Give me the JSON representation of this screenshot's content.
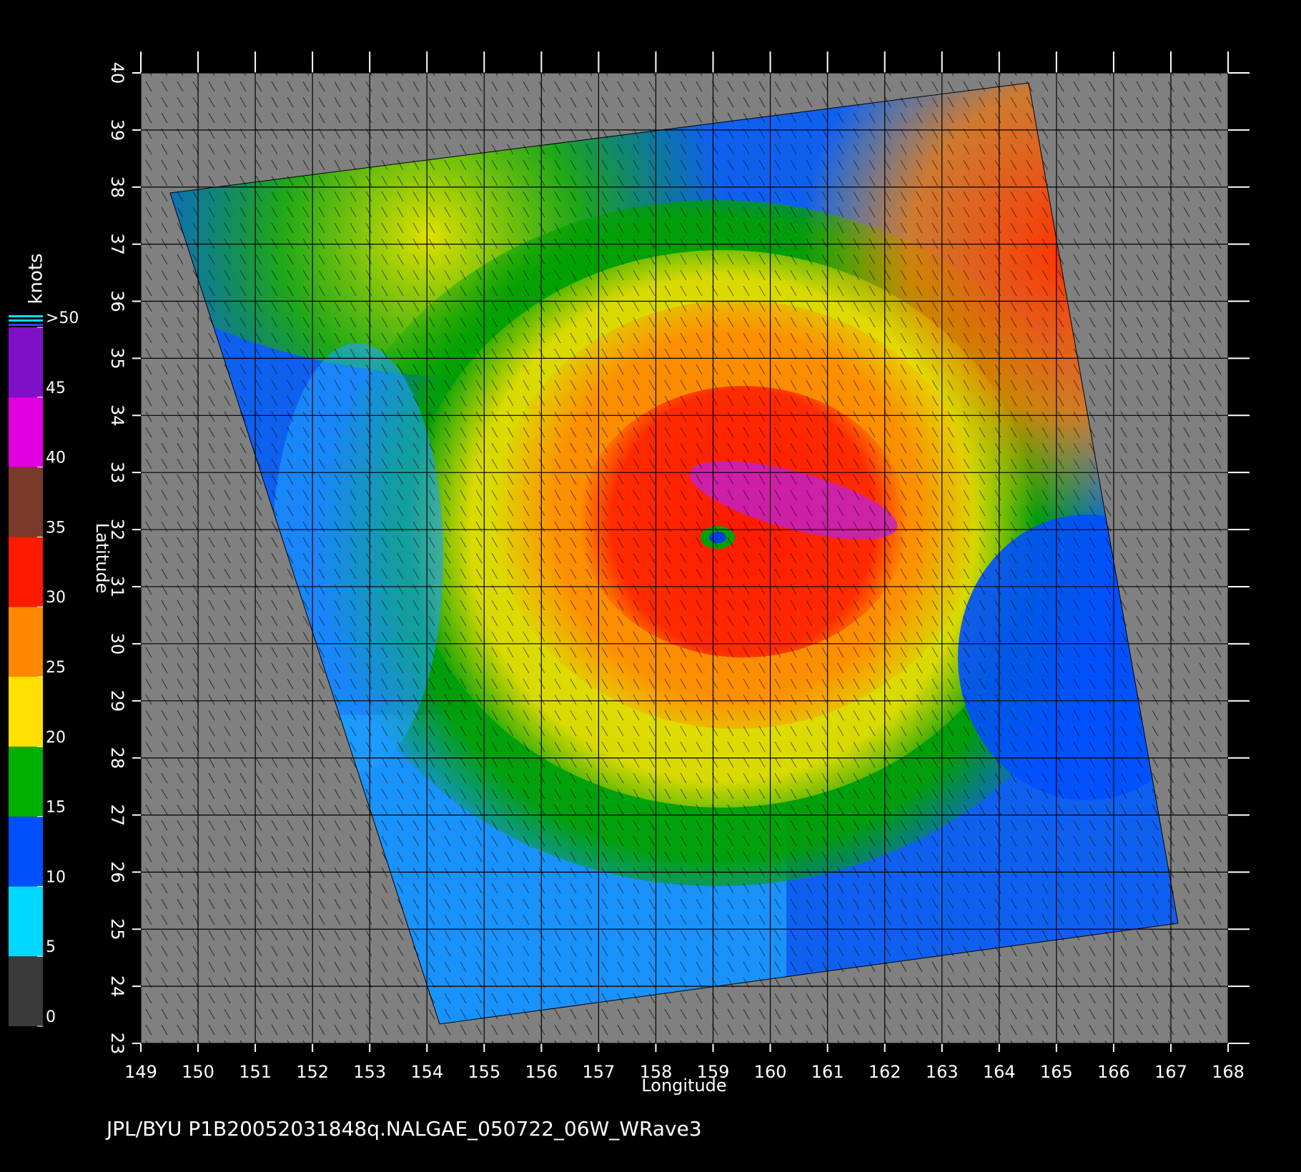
{
  "chart_data": {
    "type": "wind-map",
    "x_label": "Longitude",
    "y_label": "Latitude",
    "xlim": [
      149,
      168
    ],
    "ylim": [
      23,
      40
    ],
    "xticks": [
      149,
      150,
      151,
      152,
      153,
      154,
      155,
      156,
      157,
      158,
      159,
      160,
      161,
      162,
      163,
      164,
      165,
      166,
      167,
      168
    ],
    "yticks": [
      23,
      24,
      25,
      26,
      27,
      28,
      29,
      30,
      31,
      32,
      33,
      34,
      35,
      36,
      37,
      38,
      39,
      40
    ],
    "grid": true,
    "colorbar": {
      "label": "knots",
      "lim": [
        0,
        50
      ],
      "ticks": [
        0,
        5,
        10,
        15,
        20,
        25,
        30,
        35,
        40,
        45,
        {
          "value": 50,
          "label": ">50"
        }
      ],
      "colors": [
        "#3a3a3a",
        "#00d8ff",
        "#0050ff",
        "#00b000",
        "#ffe000",
        "#ff8800",
        "#ff1a00",
        "#7a3a2a",
        "#e000e0",
        "#8010c8"
      ]
    },
    "footer": "JPL/BYU  P1B20052031848q.NALGAE_050722_06W_WRave3"
  }
}
